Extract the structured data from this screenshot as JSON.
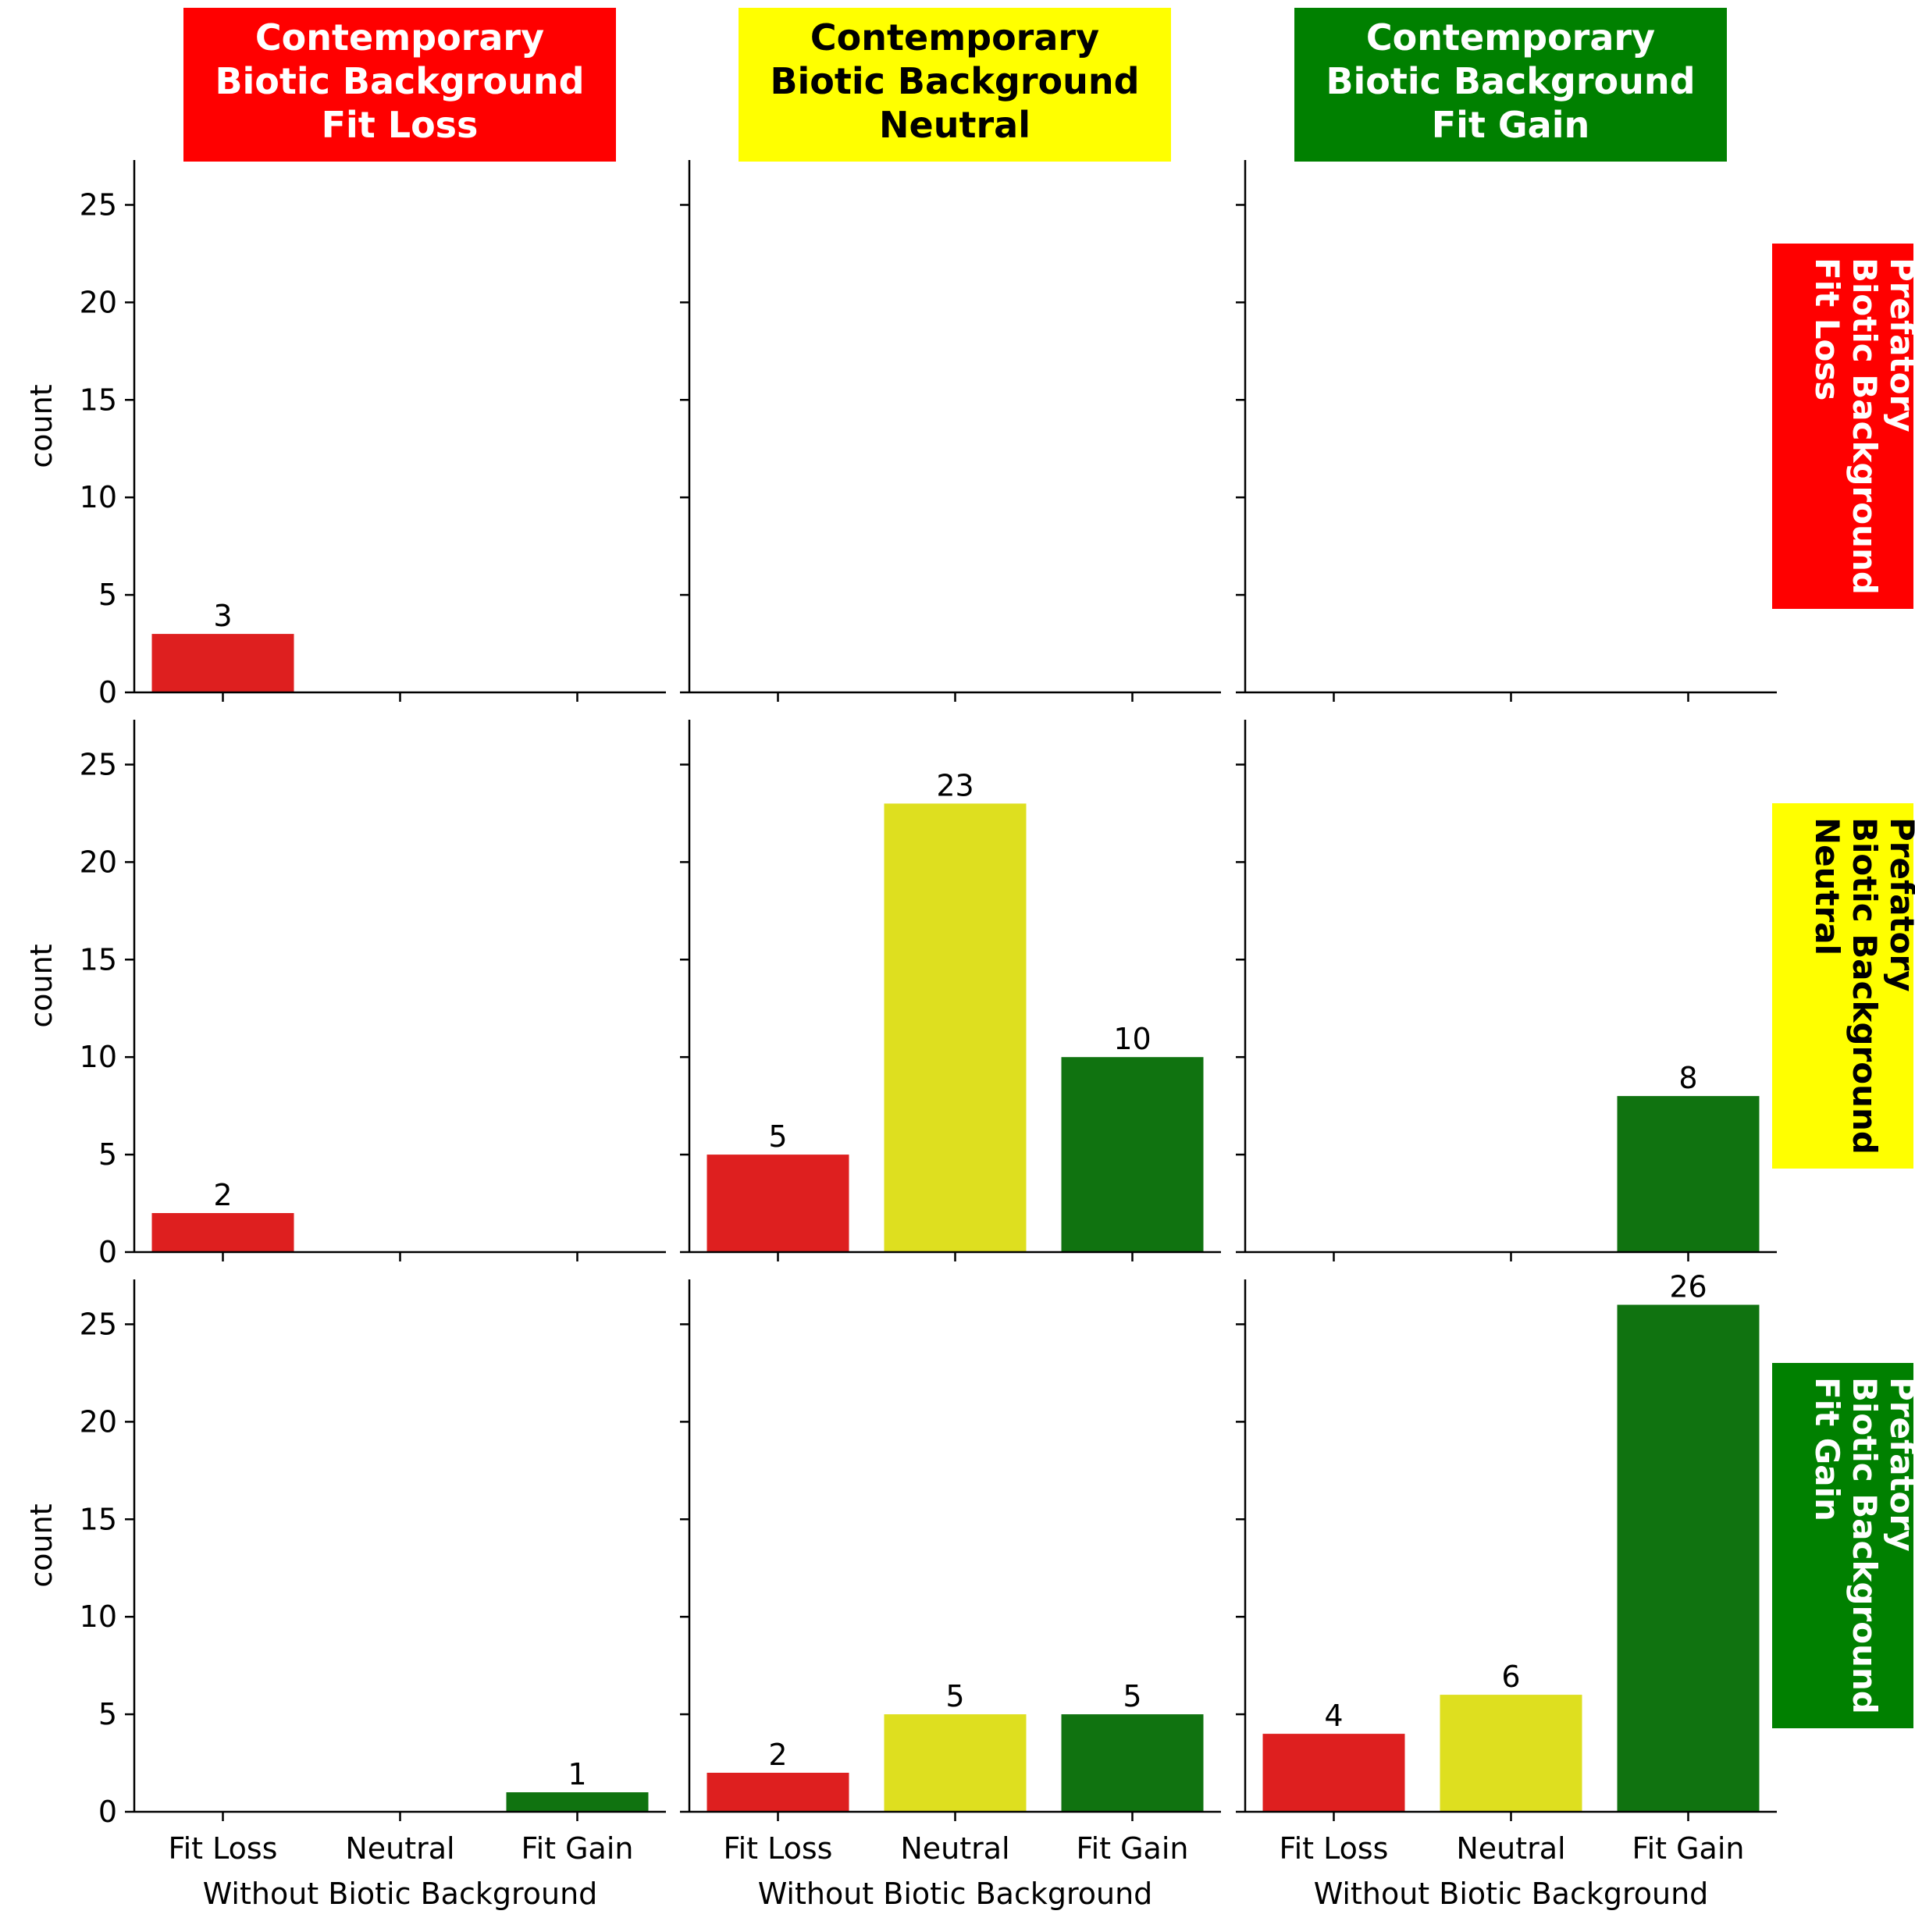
{
  "chart_data": {
    "type": "bar",
    "layout": "facet-grid 3x3",
    "categories": [
      "Fit Loss",
      "Neutral",
      "Fit Gain"
    ],
    "bar_colors": [
      "#de1f1f",
      "#dedf1f",
      "#107310"
    ],
    "ylabel": "count",
    "xlabel": "Without Biotic Background",
    "ylim": [
      0,
      27.3
    ],
    "yticks": [
      0,
      5,
      10,
      15,
      20,
      25
    ],
    "column_headers": [
      {
        "lines": [
          "Contemporary",
          "Biotic Background",
          "Fit Loss"
        ],
        "bg": "#ff0000",
        "fg": "#ffffff"
      },
      {
        "lines": [
          "Contemporary",
          "Biotic Background",
          "Neutral"
        ],
        "bg": "#ffff00",
        "fg": "#000000"
      },
      {
        "lines": [
          "Contemporary",
          "Biotic Background",
          "Fit Gain"
        ],
        "bg": "#008000",
        "fg": "#ffffff"
      }
    ],
    "row_headers": [
      {
        "lines": [
          "Prefatory",
          "Biotic Background",
          "Fit Loss"
        ],
        "bg": "#ff0000",
        "fg": "#ffffff"
      },
      {
        "lines": [
          "Prefatory",
          "Biotic Background",
          "Neutral"
        ],
        "bg": "#ffff00",
        "fg": "#000000"
      },
      {
        "lines": [
          "Prefatory",
          "Biotic Background",
          "Fit Gain"
        ],
        "bg": "#008000",
        "fg": "#ffffff"
      }
    ],
    "panels": [
      [
        [
          3,
          0,
          0
        ],
        [
          0,
          0,
          0
        ],
        [
          0,
          0,
          0
        ]
      ],
      [
        [
          2,
          0,
          0
        ],
        [
          5,
          23,
          10
        ],
        [
          0,
          0,
          8
        ]
      ],
      [
        [
          0,
          0,
          1
        ],
        [
          2,
          5,
          5
        ],
        [
          4,
          6,
          26
        ]
      ]
    ],
    "grid": false,
    "legend": "none"
  }
}
